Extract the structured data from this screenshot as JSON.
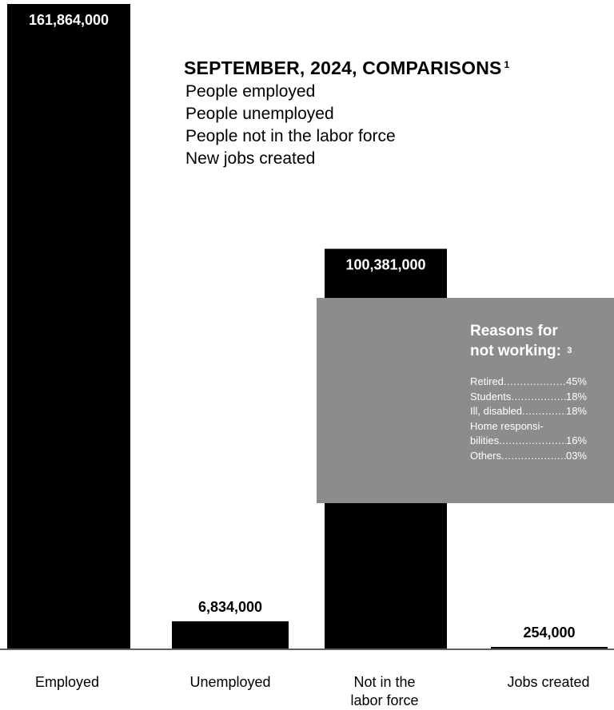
{
  "chart_data": {
    "type": "bar",
    "title": "SEPTEMBER, 2024, COMPARISONS",
    "title_footnote": "1",
    "legend": [
      "People employed",
      "People unemployed",
      "People not in the labor force",
      "New jobs created"
    ],
    "categories": [
      "Employed",
      "Unemployed",
      "Not in the labor force",
      "Jobs created"
    ],
    "category_lines": [
      [
        "Employed"
      ],
      [
        "Unemployed"
      ],
      [
        "Not in the",
        "labor force"
      ],
      [
        "Jobs created"
      ]
    ],
    "values": [
      161864000,
      6834000,
      100381000,
      254000
    ],
    "value_labels": [
      "161,864,000",
      "6,834,000",
      "100,381,000",
      "254,000"
    ],
    "bar_color": "#000000",
    "ylim": [
      0,
      161864000
    ],
    "grid": false
  },
  "reasons": {
    "title_lines": [
      "Reasons for",
      "not working:"
    ],
    "footnote": "3",
    "background": "#8c8c8c",
    "items": [
      {
        "label": "Retired",
        "value": "45%"
      },
      {
        "label": "Students",
        "value": "18%"
      },
      {
        "label": "Ill, disabled",
        "value": "18%"
      },
      {
        "label": "Home responsi-",
        "value": ""
      },
      {
        "label": "bilities",
        "value": "16%"
      },
      {
        "label": "Others",
        "value": "03%"
      }
    ]
  }
}
